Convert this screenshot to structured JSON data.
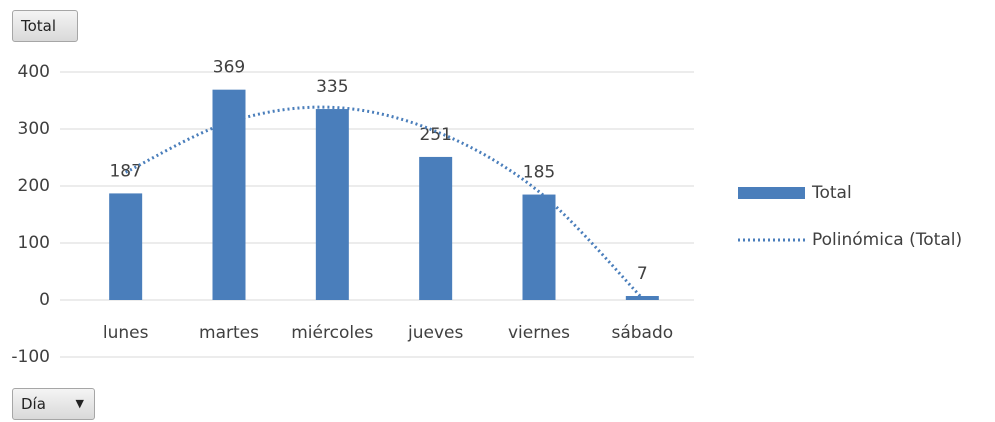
{
  "chart_data": {
    "type": "bar",
    "categories": [
      "lunes",
      "martes",
      "miércoles",
      "jueves",
      "viernes",
      "sábado"
    ],
    "series": [
      {
        "name": "Total",
        "color": "#4a7ebb",
        "values": [
          187,
          369,
          335,
          251,
          185,
          7
        ]
      },
      {
        "name": "Polinómica (Total)",
        "type": "line",
        "style": "dotted",
        "color": "#4a7ebb",
        "values": [
          224,
          312,
          338,
          296,
          190,
          3
        ]
      }
    ],
    "ylim": [
      -100,
      400
    ],
    "yticks": [
      -100,
      0,
      100,
      200,
      300,
      400
    ],
    "grid": true,
    "legend": "right"
  },
  "buttons": {
    "series_field": "Total",
    "category_field": "Día"
  }
}
